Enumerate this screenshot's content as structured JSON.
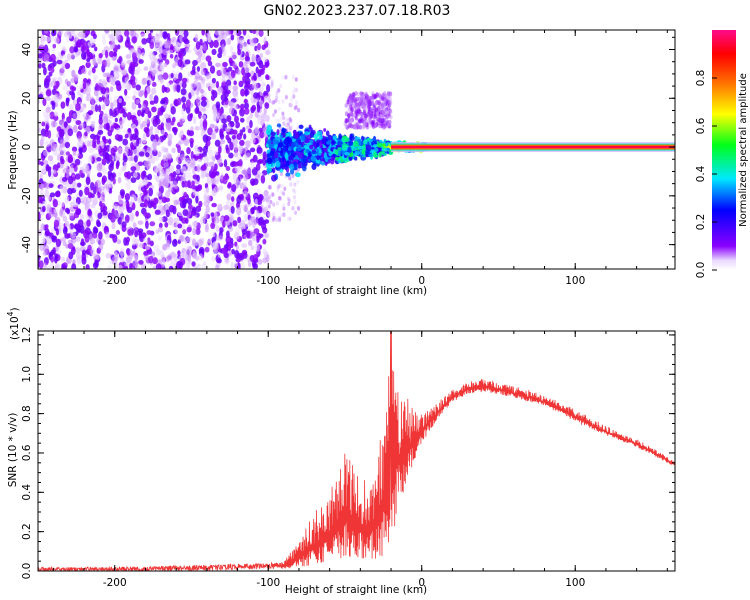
{
  "title": "GN02.2023.237.07.18.R03",
  "chart_data": [
    {
      "type": "heatmap",
      "xlabel": "Height of straight line (km)",
      "ylabel": "Frequency (Hz)",
      "xlim": [
        -250,
        165
      ],
      "ylim": [
        -50,
        48
      ],
      "x_ticks": [
        -200,
        -100,
        0,
        100
      ],
      "y_ticks": [
        -40,
        -20,
        0,
        20,
        40
      ],
      "x_tick_labels": [
        "-200",
        "-100",
        "0",
        "100"
      ],
      "y_tick_labels": [
        "-40",
        "-20",
        "0",
        "20",
        "40"
      ],
      "grid": false,
      "colormap": "rainbow (violet → blue → cyan → green → yellow → red → magenta)",
      "colorbar": {
        "label": "Normalized spectral amplitude",
        "range": [
          0,
          1
        ],
        "ticks": [
          0,
          0.2,
          0.4,
          0.6,
          0.8
        ],
        "tick_labels": [
          "0.0",
          "0.2",
          "0.4",
          "0.6",
          "0.8"
        ]
      },
      "features": [
        {
          "kind": "scattered low-amplitude noise",
          "x_range": [
            -250,
            -100
          ],
          "y_range": [
            -50,
            48
          ],
          "amplitude": 0.1
        },
        {
          "kind": "spread cluster",
          "x_range": [
            -100,
            -20
          ],
          "y_range": [
            -15,
            10
          ],
          "amplitude": 0.35
        },
        {
          "kind": "narrow line near 0 Hz",
          "x_range": [
            -20,
            165
          ],
          "y": 0,
          "amplitude": 0.95
        }
      ]
    },
    {
      "type": "line",
      "xlabel": "Height of straight line (km)",
      "ylabel": "SNR (10 * v/v)",
      "y_scale_label": "(x10",
      "y_scale_exponent": "4",
      "y_scale_suffix": ")",
      "xlim": [
        -250,
        165
      ],
      "ylim": [
        0,
        1.22
      ],
      "x_ticks": [
        -200,
        -100,
        0,
        100
      ],
      "y_ticks": [
        0,
        0.2,
        0.4,
        0.6,
        0.8,
        1.0,
        1.2
      ],
      "x_tick_labels": [
        "-200",
        "-100",
        "0",
        "100"
      ],
      "y_tick_labels": [
        "0.0",
        "0.2",
        "0.4",
        "0.6",
        "0.8",
        "1.0",
        "1.2"
      ],
      "grid": false,
      "color": "#ef3535",
      "envelope": {
        "x": [
          -250,
          -200,
          -150,
          -100,
          -90,
          -80,
          -70,
          -60,
          -50,
          -40,
          -30,
          -25,
          -20,
          -15,
          -10,
          -5,
          0,
          10,
          20,
          30,
          40,
          50,
          60,
          70,
          80,
          90,
          100,
          110,
          120,
          130,
          140,
          150,
          160,
          165
        ],
        "lower": [
          0.0,
          0.0,
          0.0,
          0.01,
          0.01,
          0.02,
          0.03,
          0.05,
          0.05,
          0.06,
          0.05,
          0.05,
          0.1,
          0.3,
          0.45,
          0.55,
          0.65,
          0.77,
          0.86,
          0.9,
          0.91,
          0.9,
          0.88,
          0.86,
          0.84,
          0.8,
          0.76,
          0.72,
          0.69,
          0.66,
          0.63,
          0.59,
          0.55,
          0.53
        ],
        "upper": [
          0.02,
          0.02,
          0.03,
          0.04,
          0.05,
          0.15,
          0.3,
          0.4,
          0.65,
          0.45,
          0.5,
          0.8,
          1.22,
          1.0,
          0.9,
          0.85,
          0.8,
          0.86,
          0.92,
          0.96,
          0.98,
          0.96,
          0.94,
          0.92,
          0.89,
          0.86,
          0.82,
          0.78,
          0.74,
          0.7,
          0.67,
          0.63,
          0.58,
          0.56
        ]
      }
    }
  ]
}
